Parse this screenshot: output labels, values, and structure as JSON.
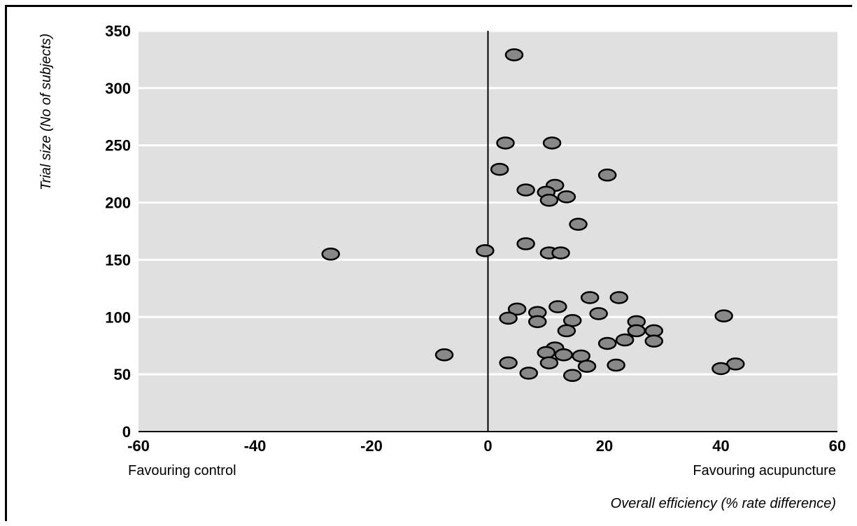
{
  "chart_data": {
    "type": "scatter",
    "title": "",
    "xlabel": "Overall efficiency (% rate difference)",
    "ylabel": "Trial size (No of subjects)",
    "x_direction_labels": {
      "left": "Favouring control",
      "right": "Favouring acupuncture"
    },
    "xlim": [
      -60,
      60
    ],
    "ylim": [
      0,
      350
    ],
    "x_ticks": [
      "-60",
      "-40",
      "-20",
      "0",
      "20",
      "40",
      "60"
    ],
    "y_ticks": [
      "0",
      "50",
      "100",
      "150",
      "200",
      "250",
      "300",
      "350"
    ],
    "grid": "horizontal",
    "reference_line_x": 0,
    "colors": {
      "plot_background": "#e0e0e0",
      "gridline": "#ffffff",
      "marker_fill": "#888888",
      "marker_edge": "#000000"
    },
    "points": [
      {
        "x": 4.5,
        "y": 329
      },
      {
        "x": 3,
        "y": 252
      },
      {
        "x": 11,
        "y": 252
      },
      {
        "x": 2,
        "y": 229
      },
      {
        "x": 20.5,
        "y": 224
      },
      {
        "x": 11.5,
        "y": 215
      },
      {
        "x": 6.5,
        "y": 211
      },
      {
        "x": 10,
        "y": 209
      },
      {
        "x": 13.5,
        "y": 205
      },
      {
        "x": 10.5,
        "y": 202
      },
      {
        "x": 15.5,
        "y": 181
      },
      {
        "x": 6.5,
        "y": 164
      },
      {
        "x": -0.5,
        "y": 158
      },
      {
        "x": 10.5,
        "y": 156
      },
      {
        "x": 12.5,
        "y": 156
      },
      {
        "x": -27,
        "y": 155
      },
      {
        "x": 17.5,
        "y": 117
      },
      {
        "x": 22.5,
        "y": 117
      },
      {
        "x": 12,
        "y": 109
      },
      {
        "x": 5,
        "y": 107
      },
      {
        "x": 8.5,
        "y": 104
      },
      {
        "x": 19,
        "y": 103
      },
      {
        "x": 40.5,
        "y": 101
      },
      {
        "x": 3.5,
        "y": 99
      },
      {
        "x": 8.5,
        "y": 96
      },
      {
        "x": 14.5,
        "y": 97
      },
      {
        "x": 25.5,
        "y": 96
      },
      {
        "x": 13.5,
        "y": 88
      },
      {
        "x": 25.5,
        "y": 88
      },
      {
        "x": 28.5,
        "y": 88
      },
      {
        "x": 23.5,
        "y": 80
      },
      {
        "x": 28.5,
        "y": 79
      },
      {
        "x": 20.5,
        "y": 77
      },
      {
        "x": 11.5,
        "y": 73
      },
      {
        "x": 10,
        "y": 69
      },
      {
        "x": -7.5,
        "y": 67
      },
      {
        "x": 13,
        "y": 67
      },
      {
        "x": 16,
        "y": 66
      },
      {
        "x": 3.5,
        "y": 60
      },
      {
        "x": 10.5,
        "y": 60
      },
      {
        "x": 17,
        "y": 57
      },
      {
        "x": 22,
        "y": 58
      },
      {
        "x": 42.5,
        "y": 59
      },
      {
        "x": 40,
        "y": 55
      },
      {
        "x": 7,
        "y": 51
      },
      {
        "x": 14.5,
        "y": 49
      }
    ]
  }
}
